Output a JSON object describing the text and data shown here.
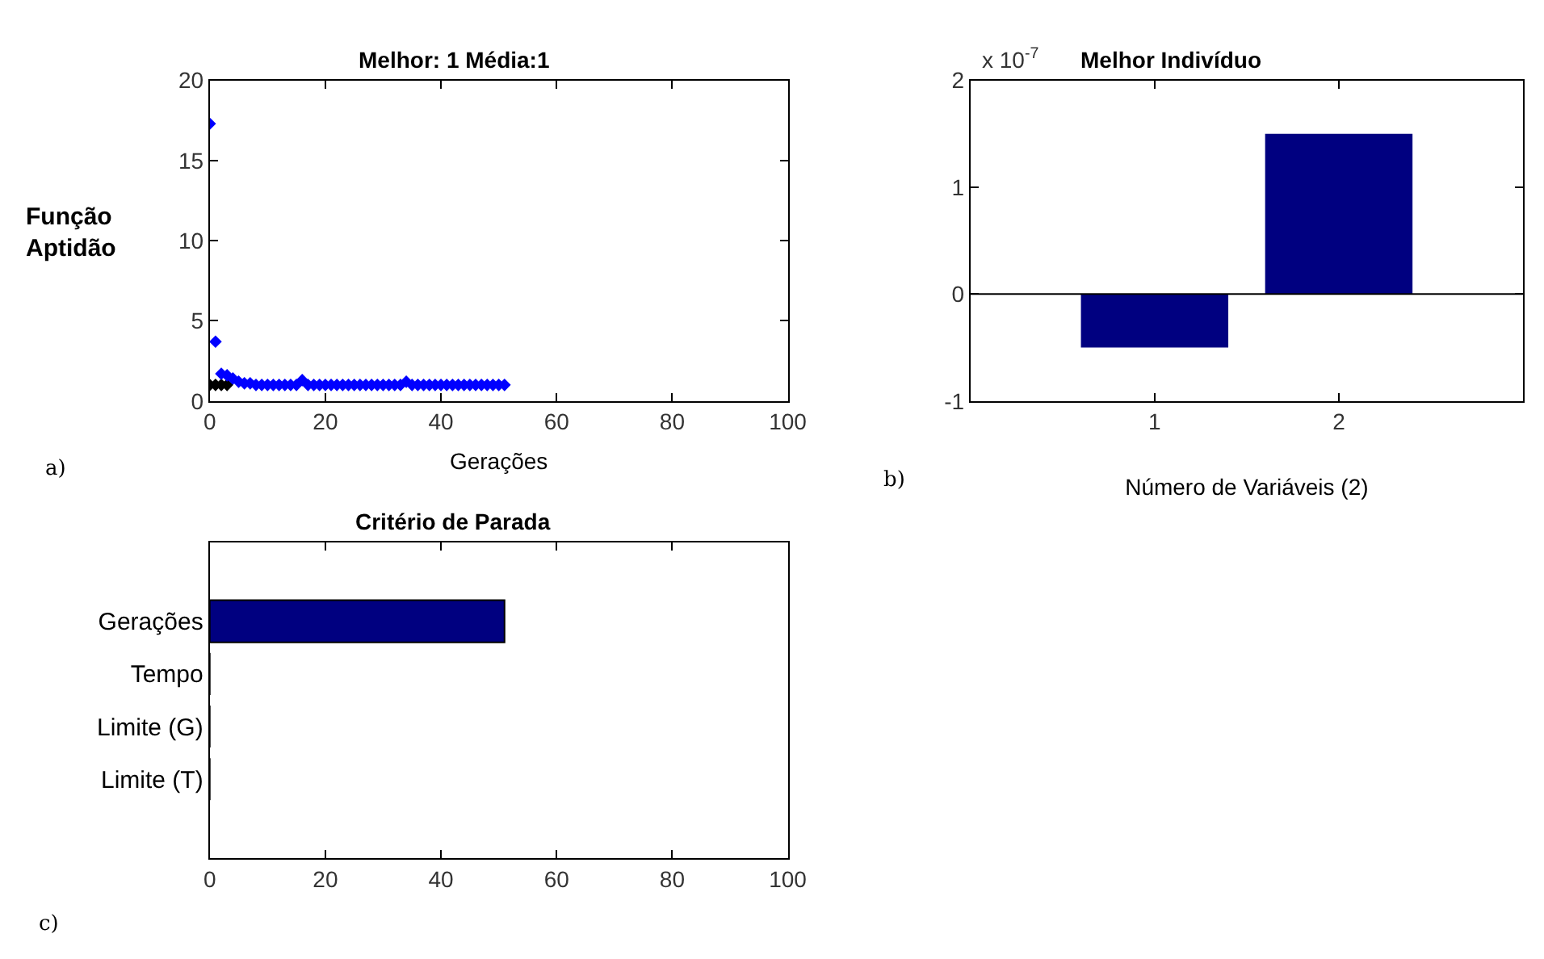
{
  "chart_data": [
    {
      "type": "scatter",
      "title": "Melhor: 1 Média:1",
      "xlabel": "Gerações",
      "ylabel": "Função Aptidão",
      "xlim": [
        0,
        100
      ],
      "xticks": [
        0,
        20,
        40,
        60,
        80,
        100
      ],
      "ylim": [
        0,
        20
      ],
      "yticks": [
        0,
        5,
        10,
        15,
        20
      ],
      "marker": "diamond",
      "grid": false,
      "annotations": [
        "a)"
      ],
      "series": [
        {
          "color": "#000000",
          "x": [
            0,
            1,
            2,
            3
          ],
          "values": [
            1,
            1,
            1,
            1
          ]
        },
        {
          "color": "#0000ff",
          "x": [
            0,
            1,
            2,
            3,
            4,
            5,
            6,
            7,
            8,
            9,
            10,
            11,
            12,
            13,
            14,
            15,
            16,
            17,
            18,
            19,
            20,
            21,
            22,
            23,
            24,
            25,
            26,
            27,
            28,
            29,
            30,
            31,
            32,
            33,
            34,
            35,
            36,
            37,
            38,
            39,
            40,
            41,
            42,
            43,
            44,
            45,
            46,
            47,
            48,
            49,
            50,
            51
          ],
          "values": [
            17.3,
            3.7,
            1.7,
            1.6,
            1.4,
            1.2,
            1.1,
            1.1,
            1,
            1,
            1,
            1,
            1,
            1,
            1,
            1,
            1.3,
            1,
            1,
            1,
            1,
            1,
            1,
            1,
            1,
            1,
            1,
            1,
            1,
            1,
            1,
            1,
            1,
            1,
            1.2,
            1,
            1,
            1,
            1,
            1,
            1,
            1,
            1,
            1,
            1,
            1,
            1,
            1,
            1,
            1,
            1,
            1
          ]
        }
      ]
    },
    {
      "type": "bar",
      "title": "Melhor Indivíduo",
      "xlabel": "Número de Variáveis (2)",
      "categories": [
        "1",
        "2"
      ],
      "values": [
        -0.5,
        1.5
      ],
      "color": "#000080",
      "ylim": [
        -1,
        2
      ],
      "yticks": [
        -1,
        0,
        1,
        2
      ],
      "grid": false,
      "ref_lines": [
        {
          "axis": "y",
          "value": 0,
          "color": "#000000"
        }
      ],
      "annotations": [
        "x 10$^{-7}$",
        "b)"
      ]
    },
    {
      "type": "bar",
      "orientation": "horizontal",
      "title": "Critério de Parada",
      "categories": [
        "Gerações",
        "Tempo",
        "Limite (G)",
        "Limite (T)"
      ],
      "values": [
        51,
        0,
        0,
        0
      ],
      "color": "#000080",
      "xlim": [
        0,
        100
      ],
      "xticks": [
        0,
        20,
        40,
        60,
        80,
        100
      ],
      "grid": false,
      "annotations": [
        "c)"
      ]
    }
  ]
}
